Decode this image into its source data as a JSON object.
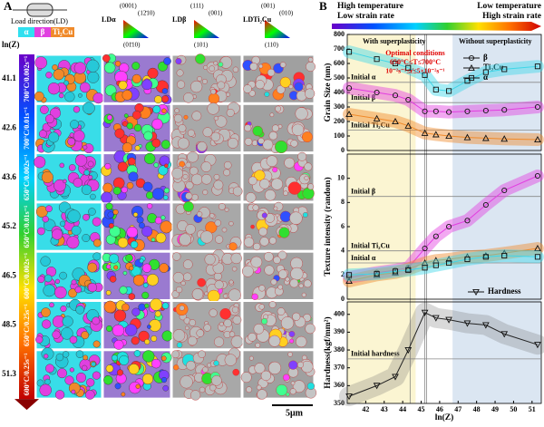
{
  "panel_a": {
    "label": "A",
    "load_direction": "Load direction(LD)",
    "phases": [
      "α",
      "β",
      "Ti₂Cu"
    ],
    "lnz_title": "ln(Z)",
    "ipf": [
      {
        "title": "LDα",
        "corners": [
          "(0001)",
          "(12̄10)",
          "(01̄10)"
        ]
      },
      {
        "title": "LDβ",
        "corners": [
          "(111)",
          "(001)",
          "(101)"
        ]
      },
      {
        "title": "LDTi₂Cu",
        "corners": [
          "(001)",
          "(010)",
          "(110)"
        ]
      }
    ],
    "rows": [
      {
        "lnz": "41.1",
        "condition": "700°C/0.002s⁻¹"
      },
      {
        "lnz": "42.6",
        "condition": "700°C/0.01s⁻¹"
      },
      {
        "lnz": "43.6",
        "condition": "650°C/0.002s⁻¹"
      },
      {
        "lnz": "45.2",
        "condition": "650°C/0.01s⁻¹"
      },
      {
        "lnz": "46.5",
        "condition": "600°C/0.002s⁻¹"
      },
      {
        "lnz": "48.5",
        "condition": "650°C/0.25s⁻¹"
      },
      {
        "lnz": "51.3",
        "condition": "600°C/0.25s⁻¹"
      }
    ],
    "scale_bar": "5μm"
  },
  "panel_b": {
    "label": "B",
    "left_header": [
      "High temperature",
      "Low strain rate"
    ],
    "right_header": [
      "Low temperature",
      "High strain rate"
    ],
    "annotations": [
      "With superplasticity",
      "Without superplasticity",
      "Optimal conditions",
      "650°C≤T≤700°C",
      "10⁻²s⁻¹≤ε̇≤5×10⁻²s⁻¹"
    ]
  },
  "chart_data": [
    {
      "type": "line",
      "ylabel": "Grain Size (nm)",
      "xlim": [
        41,
        51.5
      ],
      "ylim": [
        0,
        800
      ],
      "yticks": [
        0,
        100,
        200,
        300,
        400,
        500,
        600,
        700,
        800
      ],
      "x": [
        41.1,
        42.6,
        43.6,
        44.3,
        45.2,
        45.8,
        46.5,
        47.5,
        48.5,
        49.5,
        51.3
      ],
      "series": [
        {
          "name": "β",
          "color": "#e23ee0",
          "marker": "circle",
          "values": [
            430,
            400,
            380,
            350,
            270,
            270,
            265,
            270,
            275,
            280,
            300
          ]
        },
        {
          "name": "Ti₂Cu",
          "color": "#f08a2a",
          "marker": "triangle",
          "values": [
            250,
            220,
            200,
            170,
            120,
            110,
            100,
            90,
            85,
            80,
            75
          ]
        },
        {
          "name": "α",
          "color": "#3fd6e8",
          "marker": "square",
          "values": [
            680,
            630,
            600,
            570,
            520,
            420,
            410,
            480,
            540,
            560,
            580
          ]
        }
      ],
      "reference_lines": [
        {
          "label": "Initial α",
          "value": 470
        },
        {
          "label": "Initial β",
          "value": 330
        },
        {
          "label": "Initial Ti₂Cu",
          "value": 140
        }
      ],
      "legend": "upper right"
    },
    {
      "type": "line",
      "ylabel": "Texture intensity (random)",
      "xlim": [
        41,
        51.5
      ],
      "ylim": [
        0,
        12
      ],
      "yticks": [
        0,
        2,
        4,
        6,
        8,
        10
      ],
      "x": [
        41.1,
        42.6,
        43.6,
        44.3,
        45.2,
        45.8,
        46.5,
        47.5,
        48.5,
        49.5,
        51.3
      ],
      "series": [
        {
          "name": "β",
          "color": "#e23ee0",
          "marker": "circle",
          "values": [
            1.8,
            2.2,
            2.4,
            2.6,
            4.2,
            5.2,
            6,
            6.5,
            7.8,
            9,
            10.2
          ]
        },
        {
          "name": "Ti₂Cu",
          "color": "#f08a2a",
          "marker": "triangle",
          "values": [
            1.5,
            2,
            2.2,
            2.5,
            3,
            3.2,
            3.3,
            3.5,
            3.6,
            3.8,
            4.2
          ]
        },
        {
          "name": "α",
          "color": "#3fd6e8",
          "marker": "square",
          "values": [
            2,
            2.1,
            2.3,
            2.4,
            2.6,
            2.8,
            3,
            3.3,
            3.5,
            3.6,
            3.5
          ]
        }
      ],
      "reference_lines": [
        {
          "label": "Initial β",
          "value": 8.5
        },
        {
          "label": "Initial Ti₂Cu",
          "value": 4
        },
        {
          "label": "Initial α",
          "value": 3
        }
      ]
    },
    {
      "type": "line",
      "ylabel": "Hardness(kgf/mm²)",
      "xlabel": "ln(Z)",
      "xlim": [
        41,
        51.5
      ],
      "ylim": [
        350,
        407
      ],
      "yticks": [
        350,
        360,
        370,
        380,
        390,
        400
      ],
      "xticks": [
        42,
        43,
        44,
        45,
        46,
        47,
        48,
        49,
        50,
        51
      ],
      "x": [
        41.1,
        42.6,
        43.6,
        44.3,
        45.2,
        45.8,
        46.5,
        47.5,
        48.5,
        49.5,
        51.3
      ],
      "series": [
        {
          "name": "Hardness",
          "color": "#222222",
          "marker": "down-triangle",
          "values": [
            354,
            360,
            365,
            380,
            401,
            398,
            397,
            395,
            394,
            389,
            383
          ]
        }
      ],
      "reference_lines": [
        {
          "label": "Initial hardness",
          "value": 375
        }
      ],
      "legend": "upper right"
    }
  ]
}
